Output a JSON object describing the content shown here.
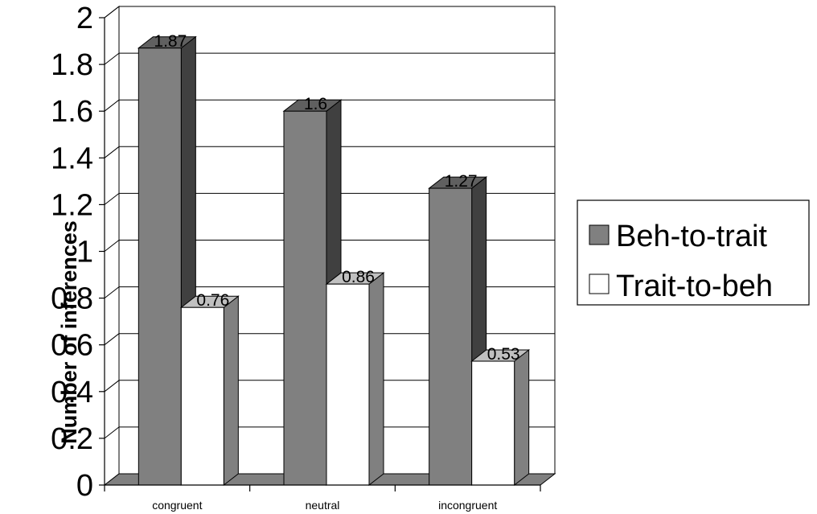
{
  "chart_data": {
    "type": "bar",
    "title": "",
    "xlabel": "",
    "ylabel": "Number of inferences",
    "categories": [
      "congruent",
      "neutral",
      "incongruent"
    ],
    "series": [
      {
        "name": "Beh-to-trait",
        "values": [
          1.87,
          1.6,
          1.27
        ],
        "value_labels": [
          "1.87",
          "1.6",
          "1.27"
        ],
        "color": "#808080"
      },
      {
        "name": "Trait-to-beh",
        "values": [
          0.76,
          0.86,
          0.53
        ],
        "value_labels": [
          "0.76",
          "0.86",
          "0.53"
        ],
        "color": "#ffffff"
      }
    ],
    "ylim": [
      0,
      2
    ],
    "yticks": [
      0,
      0.2,
      0.4,
      0.6,
      0.8,
      1,
      1.2,
      1.4,
      1.6,
      1.8,
      2
    ],
    "ytick_labels": [
      "0",
      "0.2",
      "0.4",
      "0.6",
      "0.8",
      "1",
      "1.2",
      "1.4",
      "1.6",
      "1.8",
      "2"
    ],
    "grid": true,
    "legend_position": "right",
    "style": "3d-clustered-column"
  }
}
